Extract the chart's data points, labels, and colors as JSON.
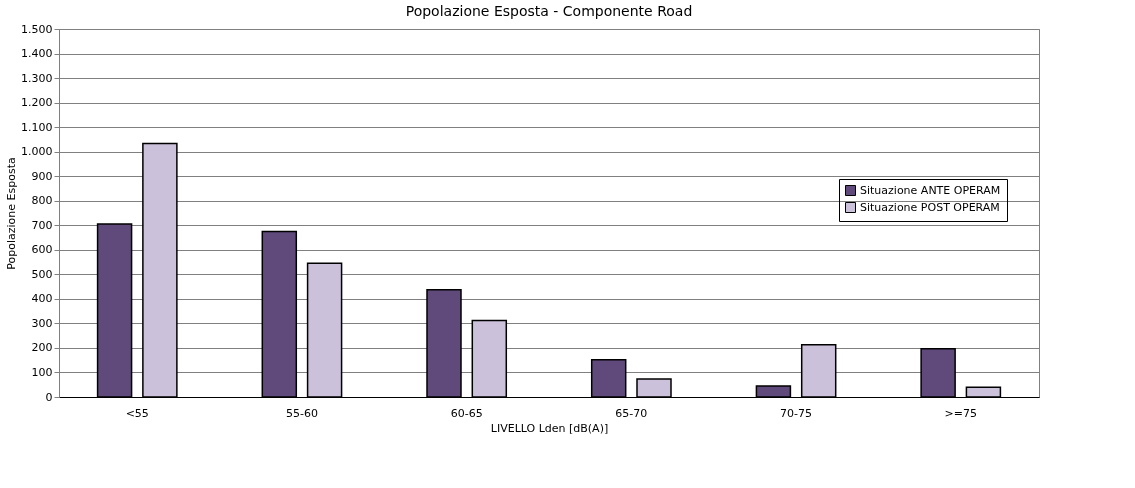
{
  "chart_data": {
    "type": "bar",
    "title": "Popolazione Esposta - Componente Road",
    "xlabel": "LIVELLO Lden [dB(A)]",
    "ylabel": "Popolazione Esposta",
    "categories": [
      "<55",
      "55-60",
      "60-65",
      "65-70",
      "70-75",
      ">=75"
    ],
    "series": [
      {
        "name": "Situazione ANTE OPERAM",
        "color": "#604a7b",
        "values": [
          705,
          675,
          437,
          152,
          45,
          197
        ]
      },
      {
        "name": "Situazione POST OPERAM",
        "color": "#ccc1da",
        "values": [
          1033,
          545,
          312,
          73,
          213,
          40
        ]
      }
    ],
    "ylim": [
      0,
      1500
    ],
    "yticks": [
      0,
      100,
      200,
      300,
      400,
      500,
      600,
      700,
      800,
      900,
      {
        "value": 1000,
        "label": "1.000"
      },
      {
        "value": 1100,
        "label": "1.100"
      },
      {
        "value": 1200,
        "label": "1.200"
      },
      {
        "value": 1300,
        "label": "1.300"
      },
      {
        "value": 1400,
        "label": "1.400"
      },
      {
        "value": 1500,
        "label": "1.500"
      }
    ],
    "grid": "y",
    "legend": "right"
  }
}
